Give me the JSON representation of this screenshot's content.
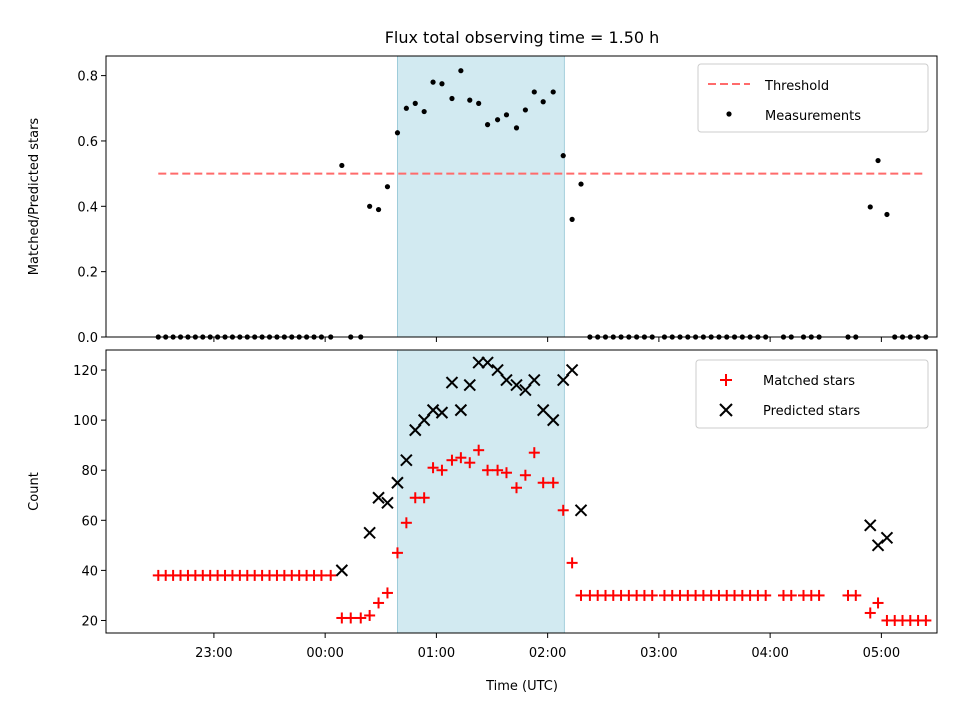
{
  "figure": {
    "title": "Flux total observing time = 1.50 h",
    "xlabel": "Time (UTC)",
    "x_ticks": [
      "23:00",
      "00:00",
      "01:00",
      "02:00",
      "03:00",
      "04:00",
      "05:00"
    ],
    "x_tick_hours": [
      23,
      24,
      25,
      26,
      27,
      28,
      29
    ],
    "x_range_hours": [
      22.03,
      29.5
    ],
    "shaded_span_hours": [
      24.65,
      26.15
    ],
    "shade_color": "#add8e6"
  },
  "chart_data": [
    {
      "type": "scatter",
      "ylabel": "Matched/Predicted stars",
      "ylim": [
        0,
        0.86
      ],
      "yticks": [
        "0.0",
        "0.2",
        "0.4",
        "0.6",
        "0.8"
      ],
      "ytick_values": [
        0,
        0.2,
        0.4,
        0.6,
        0.8
      ],
      "legend_position": "top-right",
      "threshold": {
        "name": "Threshold",
        "value": 0.5,
        "x_start": 22.5,
        "x_end": 29.4,
        "color": "#ff6b6b",
        "style": "dashed"
      },
      "series": [
        {
          "name": "Measurements",
          "color": "#000000",
          "marker": "dot",
          "points": [
            [
              22.5,
              0
            ],
            [
              22.5667,
              0
            ],
            [
              22.6333,
              0
            ],
            [
              22.7,
              0
            ],
            [
              22.7667,
              0
            ],
            [
              22.8333,
              0
            ],
            [
              22.9,
              0
            ],
            [
              22.9667,
              0
            ],
            [
              23.0333,
              0
            ],
            [
              23.1,
              0
            ],
            [
              23.1667,
              0
            ],
            [
              23.2333,
              0
            ],
            [
              23.3,
              0
            ],
            [
              23.3667,
              0
            ],
            [
              23.4333,
              0
            ],
            [
              23.5,
              0
            ],
            [
              23.5667,
              0
            ],
            [
              23.6333,
              0
            ],
            [
              23.7,
              0
            ],
            [
              23.7667,
              0
            ],
            [
              23.8333,
              0
            ],
            [
              23.9,
              0
            ],
            [
              23.9667,
              0
            ],
            [
              24.05,
              0
            ],
            [
              24.15,
              0.525
            ],
            [
              24.23,
              0
            ],
            [
              24.32,
              0
            ],
            [
              24.4,
              0.4
            ],
            [
              24.48,
              0.39
            ],
            [
              24.56,
              0.46
            ],
            [
              24.65,
              0.625
            ],
            [
              24.73,
              0.7
            ],
            [
              24.81,
              0.715
            ],
            [
              24.89,
              0.69
            ],
            [
              24.97,
              0.78
            ],
            [
              25.05,
              0.775
            ],
            [
              25.14,
              0.73
            ],
            [
              25.22,
              0.815
            ],
            [
              25.3,
              0.725
            ],
            [
              25.38,
              0.715
            ],
            [
              25.46,
              0.65
            ],
            [
              25.55,
              0.665
            ],
            [
              25.63,
              0.68
            ],
            [
              25.72,
              0.64
            ],
            [
              25.8,
              0.695
            ],
            [
              25.88,
              0.75
            ],
            [
              25.96,
              0.72
            ],
            [
              26.05,
              0.75
            ],
            [
              26.14,
              0.555
            ],
            [
              26.22,
              0.36
            ],
            [
              26.3,
              0.468
            ],
            [
              26.38,
              0
            ],
            [
              26.45,
              0
            ],
            [
              26.52,
              0
            ],
            [
              26.59,
              0
            ],
            [
              26.66,
              0
            ],
            [
              26.73,
              0
            ],
            [
              26.8,
              0
            ],
            [
              26.87,
              0
            ],
            [
              26.94,
              0
            ],
            [
              27.05,
              0
            ],
            [
              27.12,
              0
            ],
            [
              27.19,
              0
            ],
            [
              27.26,
              0
            ],
            [
              27.33,
              0
            ],
            [
              27.4,
              0
            ],
            [
              27.47,
              0
            ],
            [
              27.54,
              0
            ],
            [
              27.61,
              0
            ],
            [
              27.68,
              0
            ],
            [
              27.75,
              0
            ],
            [
              27.82,
              0
            ],
            [
              27.89,
              0
            ],
            [
              27.96,
              0
            ],
            [
              28.12,
              0
            ],
            [
              28.19,
              0
            ],
            [
              28.3,
              0
            ],
            [
              28.37,
              0
            ],
            [
              28.44,
              0
            ],
            [
              28.7,
              0
            ],
            [
              28.77,
              0
            ],
            [
              28.9,
              0.398
            ],
            [
              28.97,
              0.54
            ],
            [
              29.05,
              0.375
            ],
            [
              29.12,
              0
            ],
            [
              29.19,
              0
            ],
            [
              29.26,
              0
            ],
            [
              29.33,
              0
            ],
            [
              29.4,
              0
            ]
          ]
        }
      ]
    },
    {
      "type": "scatter",
      "ylabel": "Count",
      "xlabel": "Time (UTC)",
      "ylim": [
        15,
        128
      ],
      "yticks": [
        "20",
        "40",
        "60",
        "80",
        "100",
        "120"
      ],
      "ytick_values": [
        20,
        40,
        60,
        80,
        100,
        120
      ],
      "legend_position": "top-right",
      "series": [
        {
          "name": "Matched stars",
          "color": "#ff0000",
          "marker": "plus",
          "points": [
            [
              22.5,
              38
            ],
            [
              22.5667,
              38
            ],
            [
              22.6333,
              38
            ],
            [
              22.7,
              38
            ],
            [
              22.7667,
              38
            ],
            [
              22.8333,
              38
            ],
            [
              22.9,
              38
            ],
            [
              22.9667,
              38
            ],
            [
              23.0333,
              38
            ],
            [
              23.1,
              38
            ],
            [
              23.1667,
              38
            ],
            [
              23.2333,
              38
            ],
            [
              23.3,
              38
            ],
            [
              23.3667,
              38
            ],
            [
              23.4333,
              38
            ],
            [
              23.5,
              38
            ],
            [
              23.5667,
              38
            ],
            [
              23.6333,
              38
            ],
            [
              23.7,
              38
            ],
            [
              23.7667,
              38
            ],
            [
              23.8333,
              38
            ],
            [
              23.9,
              38
            ],
            [
              23.9667,
              38
            ],
            [
              24.05,
              38
            ],
            [
              24.15,
              21
            ],
            [
              24.23,
              21
            ],
            [
              24.32,
              21
            ],
            [
              24.4,
              22
            ],
            [
              24.48,
              27
            ],
            [
              24.56,
              31
            ],
            [
              24.65,
              47
            ],
            [
              24.73,
              59
            ],
            [
              24.81,
              69
            ],
            [
              24.89,
              69
            ],
            [
              24.97,
              81
            ],
            [
              25.05,
              80
            ],
            [
              25.14,
              84
            ],
            [
              25.22,
              85
            ],
            [
              25.3,
              83
            ],
            [
              25.38,
              88
            ],
            [
              25.46,
              80
            ],
            [
              25.55,
              80
            ],
            [
              25.63,
              79
            ],
            [
              25.72,
              73
            ],
            [
              25.8,
              78
            ],
            [
              25.88,
              87
            ],
            [
              25.96,
              75
            ],
            [
              26.05,
              75
            ],
            [
              26.14,
              64
            ],
            [
              26.22,
              43
            ],
            [
              26.3,
              30
            ],
            [
              26.38,
              30
            ],
            [
              26.45,
              30
            ],
            [
              26.52,
              30
            ],
            [
              26.59,
              30
            ],
            [
              26.66,
              30
            ],
            [
              26.73,
              30
            ],
            [
              26.8,
              30
            ],
            [
              26.87,
              30
            ],
            [
              26.94,
              30
            ],
            [
              27.05,
              30
            ],
            [
              27.12,
              30
            ],
            [
              27.19,
              30
            ],
            [
              27.26,
              30
            ],
            [
              27.33,
              30
            ],
            [
              27.4,
              30
            ],
            [
              27.47,
              30
            ],
            [
              27.54,
              30
            ],
            [
              27.61,
              30
            ],
            [
              27.68,
              30
            ],
            [
              27.75,
              30
            ],
            [
              27.82,
              30
            ],
            [
              27.89,
              30
            ],
            [
              27.96,
              30
            ],
            [
              28.12,
              30
            ],
            [
              28.19,
              30
            ],
            [
              28.3,
              30
            ],
            [
              28.37,
              30
            ],
            [
              28.44,
              30
            ],
            [
              28.7,
              30
            ],
            [
              28.77,
              30
            ],
            [
              28.9,
              23
            ],
            [
              28.97,
              27
            ],
            [
              29.05,
              20
            ],
            [
              29.12,
              20
            ],
            [
              29.19,
              20
            ],
            [
              29.26,
              20
            ],
            [
              29.33,
              20
            ],
            [
              29.4,
              20
            ]
          ]
        },
        {
          "name": "Predicted stars",
          "color": "#000000",
          "marker": "x",
          "points": [
            [
              24.15,
              40
            ],
            [
              24.4,
              55
            ],
            [
              24.48,
              69
            ],
            [
              24.56,
              67
            ],
            [
              24.65,
              75
            ],
            [
              24.73,
              84
            ],
            [
              24.81,
              96
            ],
            [
              24.89,
              100
            ],
            [
              24.97,
              104
            ],
            [
              25.05,
              103
            ],
            [
              25.14,
              115
            ],
            [
              25.22,
              104
            ],
            [
              25.3,
              114
            ],
            [
              25.38,
              123
            ],
            [
              25.46,
              123
            ],
            [
              25.55,
              120
            ],
            [
              25.63,
              116
            ],
            [
              25.72,
              114
            ],
            [
              25.8,
              112
            ],
            [
              25.88,
              116
            ],
            [
              25.96,
              104
            ],
            [
              26.05,
              100
            ],
            [
              26.14,
              116
            ],
            [
              26.22,
              120
            ],
            [
              26.3,
              64
            ],
            [
              28.9,
              58
            ],
            [
              28.97,
              50
            ],
            [
              29.05,
              53
            ]
          ]
        }
      ]
    }
  ]
}
